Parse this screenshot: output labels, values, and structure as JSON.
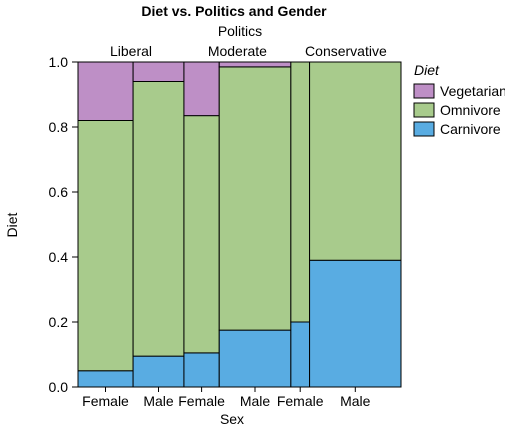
{
  "chart_data": {
    "type": "mosaic",
    "title": "Diet vs. Politics and Gender",
    "xlabel": "Sex",
    "ylabel": "Diet",
    "top_group_label": "Politics",
    "ylim": [
      0,
      1
    ],
    "yticks": [
      "0.0",
      "0.2",
      "0.4",
      "0.6",
      "0.8",
      "1.0"
    ],
    "legend": {
      "title": "Diet",
      "position": "right",
      "entries": [
        {
          "name": "Vegetarian",
          "color": "#BE8FC6"
        },
        {
          "name": "Omnivore",
          "color": "#A8CB8C"
        },
        {
          "name": "Carnivore",
          "color": "#59ACE2"
        }
      ]
    },
    "groups": [
      {
        "name": "Liberal",
        "share": 0.328,
        "sexes": [
          {
            "name": "Female",
            "share": 0.52,
            "carnivore": 0.05,
            "omnivore": 0.77,
            "vegetarian": 0.18
          },
          {
            "name": "Male",
            "share": 0.48,
            "carnivore": 0.095,
            "omnivore": 0.845,
            "vegetarian": 0.06
          }
        ]
      },
      {
        "name": "Moderate",
        "share": 0.331,
        "sexes": [
          {
            "name": "Female",
            "share": 0.33,
            "carnivore": 0.105,
            "omnivore": 0.73,
            "vegetarian": 0.165
          },
          {
            "name": "Male",
            "share": 0.67,
            "carnivore": 0.175,
            "omnivore": 0.81,
            "vegetarian": 0.015
          }
        ]
      },
      {
        "name": "Conservative",
        "share": 0.341,
        "sexes": [
          {
            "name": "Female",
            "share": 0.17,
            "carnivore": 0.2,
            "omnivore": 0.8,
            "vegetarian": 0.0
          },
          {
            "name": "Male",
            "share": 0.83,
            "carnivore": 0.39,
            "omnivore": 0.61,
            "vegetarian": 0.0
          }
        ]
      }
    ]
  }
}
